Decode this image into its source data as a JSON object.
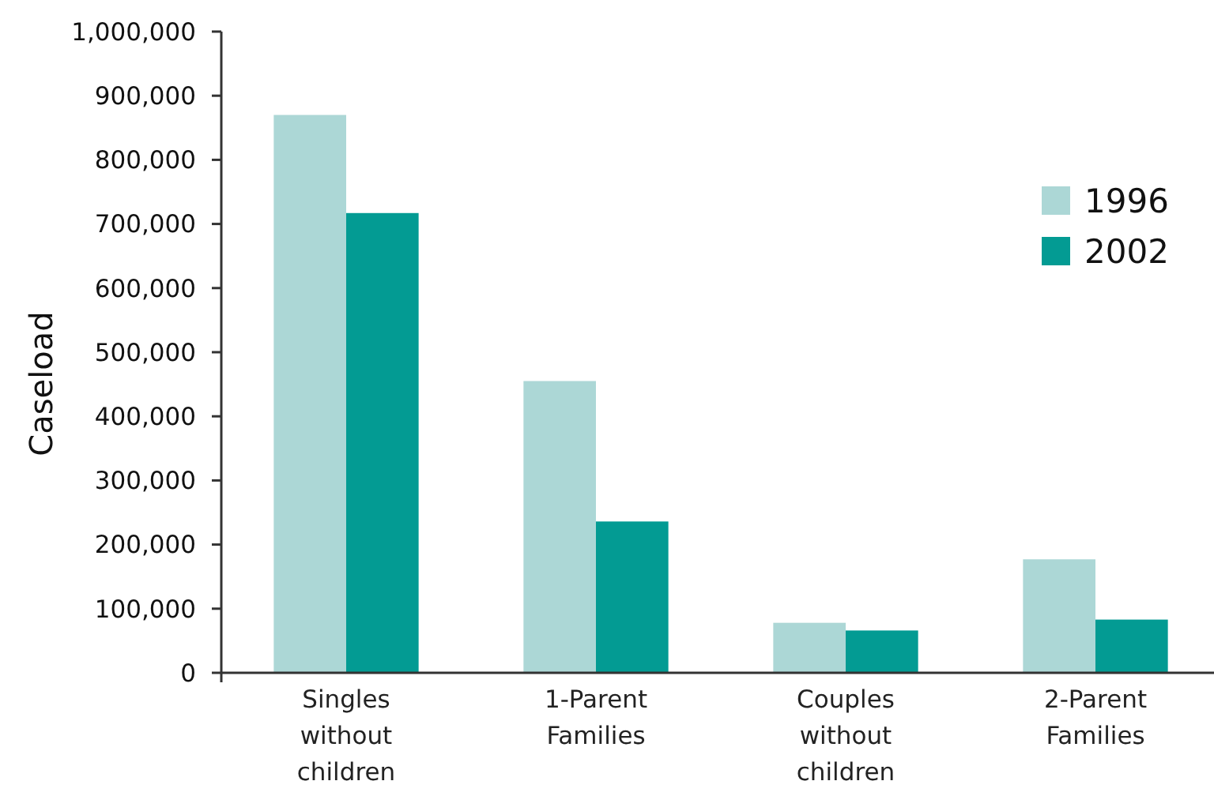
{
  "chart_data": {
    "type": "bar",
    "ylabel": "Caseload",
    "categories": [
      "Singles without children",
      "1-Parent Families",
      "Couples without children",
      "2-Parent Families"
    ],
    "series": [
      {
        "name": "1996",
        "color": "#acd7d6",
        "values": [
          870000,
          455000,
          78000,
          177000
        ]
      },
      {
        "name": "2002",
        "color": "#039b93",
        "values": [
          717000,
          236000,
          66000,
          83000
        ]
      }
    ],
    "ylim": [
      0,
      1000000
    ],
    "yticks": [
      {
        "value": 0,
        "label": "0"
      },
      {
        "value": 100000,
        "label": "100,000"
      },
      {
        "value": 200000,
        "label": "200,000"
      },
      {
        "value": 300000,
        "label": "300,000"
      },
      {
        "value": 400000,
        "label": "400,000"
      },
      {
        "value": 500000,
        "label": "500,000"
      },
      {
        "value": 600000,
        "label": "600,000"
      },
      {
        "value": 700000,
        "label": "700,000"
      },
      {
        "value": 800000,
        "label": "800,000"
      },
      {
        "value": 900000,
        "label": "900,000"
      },
      {
        "value": 1000000,
        "label": "1,000,000"
      }
    ],
    "grid": false,
    "legend": "top right"
  }
}
